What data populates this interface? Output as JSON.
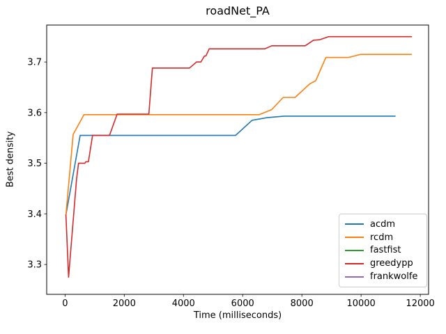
{
  "chart_data": {
    "type": "line",
    "title": "roadNet_PA",
    "xlabel": "Time (milliseconds)",
    "ylabel": "Best density",
    "xlim": [
      -620,
      12280
    ],
    "ylim": [
      3.241,
      3.773
    ],
    "xticks": [
      0,
      2000,
      4000,
      6000,
      8000,
      10000,
      12000
    ],
    "yticks": [
      3.3,
      3.4,
      3.5,
      3.6,
      3.7
    ],
    "grid": false,
    "legend_position": "lower right",
    "axis_color": "#000000",
    "background": "#ffffff",
    "series": [
      {
        "name": "acdm",
        "color": "#1f77b4",
        "points": [
          [
            30,
            3.398
          ],
          [
            510,
            3.555
          ],
          [
            5760,
            3.555
          ],
          [
            6320,
            3.585
          ],
          [
            6820,
            3.59
          ],
          [
            7400,
            3.593
          ],
          [
            11150,
            3.593
          ]
        ]
      },
      {
        "name": "rcdm",
        "color": "#ff7f0e",
        "points": [
          [
            30,
            3.398
          ],
          [
            275,
            3.557
          ],
          [
            640,
            3.596
          ],
          [
            6560,
            3.596
          ],
          [
            6980,
            3.606
          ],
          [
            7370,
            3.63
          ],
          [
            7770,
            3.63
          ],
          [
            8270,
            3.657
          ],
          [
            8470,
            3.663
          ],
          [
            8810,
            3.709
          ],
          [
            9570,
            3.709
          ],
          [
            9980,
            3.715
          ],
          [
            11700,
            3.715
          ]
        ]
      },
      {
        "name": "fastfist",
        "color": "#2ca02c",
        "points": []
      },
      {
        "name": "greedypp",
        "color": "#d62728",
        "points": [
          [
            30,
            3.398
          ],
          [
            120,
            3.275
          ],
          [
            390,
            3.469
          ],
          [
            455,
            3.5
          ],
          [
            670,
            3.5
          ],
          [
            700,
            3.503
          ],
          [
            790,
            3.503
          ],
          [
            930,
            3.555
          ],
          [
            1500,
            3.555
          ],
          [
            1760,
            3.597
          ],
          [
            2830,
            3.597
          ],
          [
            2950,
            3.688
          ],
          [
            4200,
            3.688
          ],
          [
            4440,
            3.7
          ],
          [
            4590,
            3.7
          ],
          [
            4710,
            3.712
          ],
          [
            4760,
            3.712
          ],
          [
            4870,
            3.726
          ],
          [
            6750,
            3.726
          ],
          [
            6980,
            3.732
          ],
          [
            8110,
            3.732
          ],
          [
            8390,
            3.743
          ],
          [
            8600,
            3.744
          ],
          [
            8900,
            3.75
          ],
          [
            11700,
            3.75
          ]
        ]
      },
      {
        "name": "frankwolfe",
        "color": "#9467bd",
        "points": []
      }
    ]
  }
}
